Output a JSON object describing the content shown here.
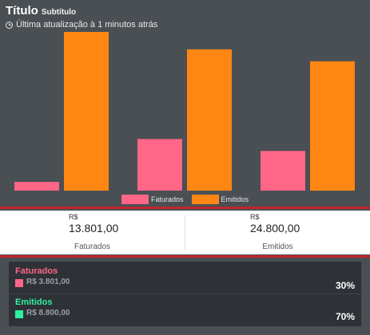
{
  "header": {
    "title": "Título",
    "subtitle": "Subtítulo",
    "updated": "Última atualização à 1 minutos atrás"
  },
  "colors": {
    "faturados": "#ff6688",
    "emitidos": "#ff8613",
    "emitidos_accent": "#2ef0a0",
    "divider": "#c0262b"
  },
  "chart_data": {
    "type": "bar",
    "categories": [
      "",
      "",
      ""
    ],
    "series": [
      {
        "name": "Faturados",
        "values": [
          1100,
          6500,
          5000
        ]
      },
      {
        "name": "Emitidos",
        "values": [
          20000,
          17800,
          16300
        ]
      }
    ],
    "ylim": [
      0,
      20000
    ],
    "legend": "bottom"
  },
  "totals": [
    {
      "currency": "R$",
      "value": "13.801,00",
      "label": "Faturados"
    },
    {
      "currency": "R$",
      "value": "24.800,00",
      "label": "Emitidos"
    }
  ],
  "shares": [
    {
      "name": "Faturados",
      "value": "R$ 3.801,00",
      "percent": "30%"
    },
    {
      "name": "Emitidos",
      "value": "R$ 8.800,00",
      "percent": "70%"
    }
  ]
}
